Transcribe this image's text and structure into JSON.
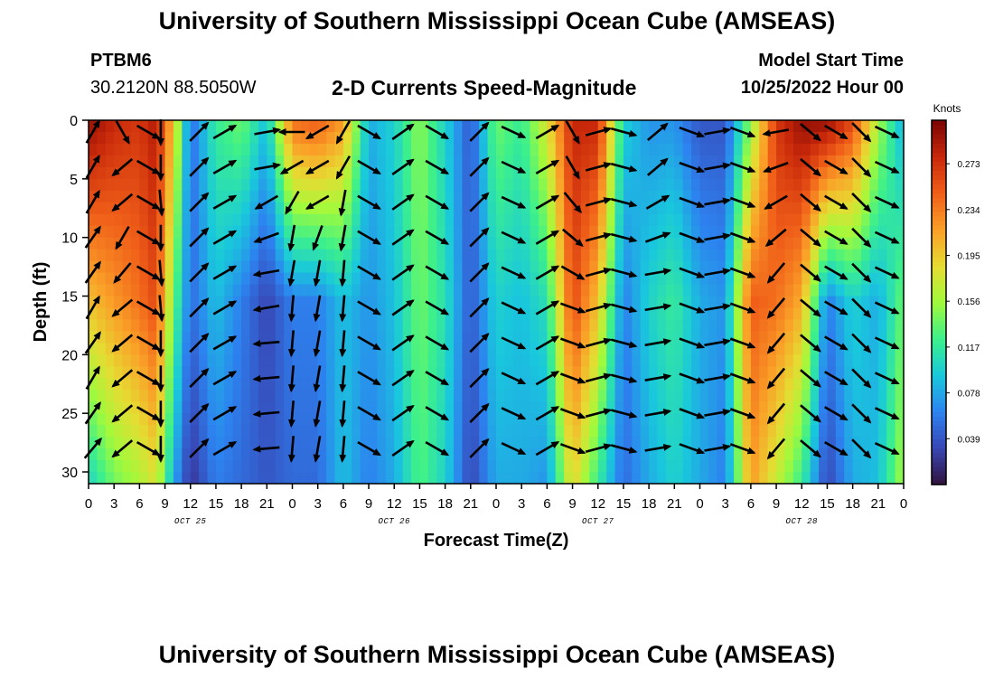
{
  "header": {
    "title": "University of Southern Mississippi Ocean Cube (AMSEAS)",
    "station_id": "PTBM6",
    "station_coords": "30.2120N  88.5050W",
    "subtitle": "2-D Currents Speed-Magnitude",
    "model_start_label": "Model Start Time",
    "model_start_value": "10/25/2022 Hour 00"
  },
  "footer": {
    "title": "University of Southern Mississippi Ocean Cube (AMSEAS)"
  },
  "chart_data": {
    "type": "heatmap",
    "title": "2-D Currents Speed-Magnitude",
    "xlabel": "Forecast Time(Z)",
    "ylabel": "Depth (ft)",
    "x_hours_range": [
      0,
      96
    ],
    "ylim": [
      0,
      31
    ],
    "y_inverted": true,
    "x_tick_labels": [
      "0",
      "3",
      "6",
      "9",
      "12",
      "15",
      "18",
      "21",
      "0",
      "3",
      "6",
      "9",
      "12",
      "15",
      "18",
      "21",
      "0",
      "3",
      "6",
      "9",
      "12",
      "15",
      "18",
      "21",
      "0",
      "3",
      "6",
      "9",
      "12",
      "15",
      "18",
      "21",
      "0"
    ],
    "y_ticks": [
      0,
      5,
      10,
      15,
      20,
      25,
      30
    ],
    "date_labels": [
      {
        "hour": 12,
        "label": "OCT 25"
      },
      {
        "hour": 36,
        "label": "OCT 26"
      },
      {
        "hour": 60,
        "label": "OCT 27"
      },
      {
        "hour": 84,
        "label": "OCT 28"
      }
    ],
    "colorbar": {
      "unit": "Knots",
      "tick_labels": [
        "0.273",
        "0.234",
        "0.195",
        "0.156",
        "0.117",
        "0.078",
        "0.039"
      ],
      "tick_values": [
        0.273,
        0.234,
        0.195,
        0.156,
        0.117,
        0.078,
        0.039
      ],
      "range": [
        0.0,
        0.31
      ]
    },
    "speed_profile": {
      "description": "approximate current speed (knots) at selected forecast hours, surface / mid / bottom",
      "hours": [
        0,
        3,
        6,
        8,
        10,
        12,
        15,
        18,
        21,
        24,
        27,
        30,
        33,
        36,
        39,
        42,
        45,
        48,
        51,
        54,
        57,
        60,
        63,
        66,
        69,
        72,
        75,
        78,
        81,
        84,
        87,
        90,
        93,
        96
      ],
      "surface": [
        0.3,
        0.28,
        0.27,
        0.29,
        0.2,
        0.05,
        0.12,
        0.14,
        0.09,
        0.24,
        0.25,
        0.22,
        0.08,
        0.1,
        0.15,
        0.1,
        0.04,
        0.14,
        0.12,
        0.18,
        0.28,
        0.28,
        0.1,
        0.07,
        0.07,
        0.04,
        0.04,
        0.15,
        0.27,
        0.3,
        0.3,
        0.26,
        0.16,
        0.08
      ],
      "mid": [
        0.2,
        0.22,
        0.24,
        0.26,
        0.14,
        0.05,
        0.09,
        0.06,
        0.03,
        0.06,
        0.06,
        0.09,
        0.07,
        0.09,
        0.14,
        0.11,
        0.04,
        0.1,
        0.09,
        0.11,
        0.26,
        0.2,
        0.06,
        0.1,
        0.12,
        0.08,
        0.07,
        0.25,
        0.24,
        0.21,
        0.06,
        0.1,
        0.08,
        0.14
      ],
      "bottom": [
        0.1,
        0.14,
        0.16,
        0.18,
        0.08,
        0.02,
        0.06,
        0.05,
        0.04,
        0.05,
        0.05,
        0.09,
        0.06,
        0.08,
        0.13,
        0.1,
        0.03,
        0.08,
        0.08,
        0.07,
        0.19,
        0.12,
        0.05,
        0.08,
        0.1,
        0.08,
        0.06,
        0.22,
        0.17,
        0.12,
        0.03,
        0.08,
        0.09,
        0.16
      ]
    },
    "vector_columns": [
      {
        "hour": 0.5,
        "dirs": [
          -60,
          -60,
          -60,
          -55,
          -55,
          -60,
          -55,
          -60,
          -55,
          -50
        ]
      },
      {
        "hour": 4,
        "dirs": [
          60,
          140,
          140,
          120,
          130,
          140,
          140,
          140,
          140,
          140
        ]
      },
      {
        "hour": 7,
        "dirs": [
          30,
          30,
          30,
          30,
          30,
          30,
          30,
          30,
          30,
          30
        ]
      },
      {
        "hour": 8.5,
        "dirs": [
          90,
          90,
          85,
          90,
          85,
          85,
          90,
          90,
          90,
          90
        ]
      },
      {
        "hour": 13,
        "dirs": [
          -45,
          -45,
          -45,
          -45,
          -45,
          -45,
          -45,
          -45,
          -45,
          -45
        ]
      },
      {
        "hour": 16,
        "dirs": [
          -30,
          -30,
          -30,
          -30,
          -30,
          -30,
          -30,
          -30,
          -30,
          -30
        ]
      },
      {
        "hour": 21,
        "dirs": [
          -10,
          -10,
          150,
          160,
          170,
          170,
          175,
          175,
          175,
          175
        ]
      },
      {
        "hour": 24,
        "dirs": [
          180,
          150,
          120,
          100,
          100,
          95,
          95,
          95,
          95,
          95
        ]
      },
      {
        "hour": 27,
        "dirs": [
          150,
          150,
          150,
          110,
          100,
          100,
          100,
          100,
          100,
          100
        ]
      },
      {
        "hour": 30,
        "dirs": [
          120,
          120,
          100,
          100,
          95,
          95,
          95,
          95,
          95,
          95
        ]
      },
      {
        "hour": 33,
        "dirs": [
          30,
          30,
          30,
          30,
          30,
          30,
          30,
          30,
          30,
          30
        ]
      },
      {
        "hour": 37,
        "dirs": [
          -35,
          -35,
          -35,
          -35,
          -35,
          -35,
          -35,
          -35,
          -35,
          -35
        ]
      },
      {
        "hour": 41,
        "dirs": [
          30,
          30,
          30,
          30,
          30,
          30,
          30,
          30,
          30,
          30
        ]
      },
      {
        "hour": 46,
        "dirs": [
          -45,
          -45,
          -45,
          -45,
          -45,
          -45,
          -45,
          -45,
          -45,
          -45
        ]
      },
      {
        "hour": 50,
        "dirs": [
          25,
          25,
          25,
          25,
          25,
          25,
          25,
          25,
          25,
          25
        ]
      },
      {
        "hour": 54,
        "dirs": [
          -30,
          -30,
          -30,
          -30,
          -30,
          -30,
          -30,
          -30,
          -30,
          -30
        ]
      },
      {
        "hour": 57,
        "dirs": [
          60,
          60,
          50,
          40,
          30,
          20,
          20,
          20,
          20,
          20
        ]
      },
      {
        "hour": 60,
        "dirs": [
          -15,
          -15,
          -15,
          -15,
          -15,
          -15,
          -15,
          -15,
          -15,
          -15
        ]
      },
      {
        "hour": 63,
        "dirs": [
          15,
          15,
          15,
          15,
          15,
          15,
          15,
          15,
          15,
          15
        ]
      },
      {
        "hour": 67,
        "dirs": [
          -40,
          -40,
          -30,
          -20,
          -10,
          -10,
          -10,
          -10,
          -10,
          -10
        ]
      },
      {
        "hour": 71,
        "dirs": [
          20,
          20,
          20,
          20,
          20,
          20,
          20,
          20,
          20,
          20
        ]
      },
      {
        "hour": 74,
        "dirs": [
          -10,
          -10,
          -10,
          -10,
          -10,
          -10,
          -10,
          -10,
          -10,
          -10
        ]
      },
      {
        "hour": 77,
        "dirs": [
          20,
          20,
          20,
          20,
          20,
          20,
          20,
          20,
          20,
          20
        ]
      },
      {
        "hour": 81,
        "dirs": [
          170,
          160,
          150,
          140,
          130,
          130,
          130,
          130,
          130,
          130
        ]
      },
      {
        "hour": 85,
        "dirs": [
          40,
          40,
          40,
          40,
          40,
          40,
          40,
          40,
          40,
          40
        ]
      },
      {
        "hour": 88,
        "dirs": [
          30,
          30,
          30,
          30,
          30,
          30,
          30,
          30,
          30,
          30
        ]
      },
      {
        "hour": 91,
        "dirs": [
          45,
          45,
          45,
          45,
          45,
          45,
          45,
          45,
          45,
          45
        ]
      },
      {
        "hour": 94,
        "dirs": [
          25,
          25,
          25,
          25,
          25,
          25,
          25,
          25,
          25,
          25
        ]
      }
    ],
    "vector_depths": [
      1,
      4,
      7,
      10,
      13,
      16,
      19,
      22,
      25,
      28
    ]
  }
}
